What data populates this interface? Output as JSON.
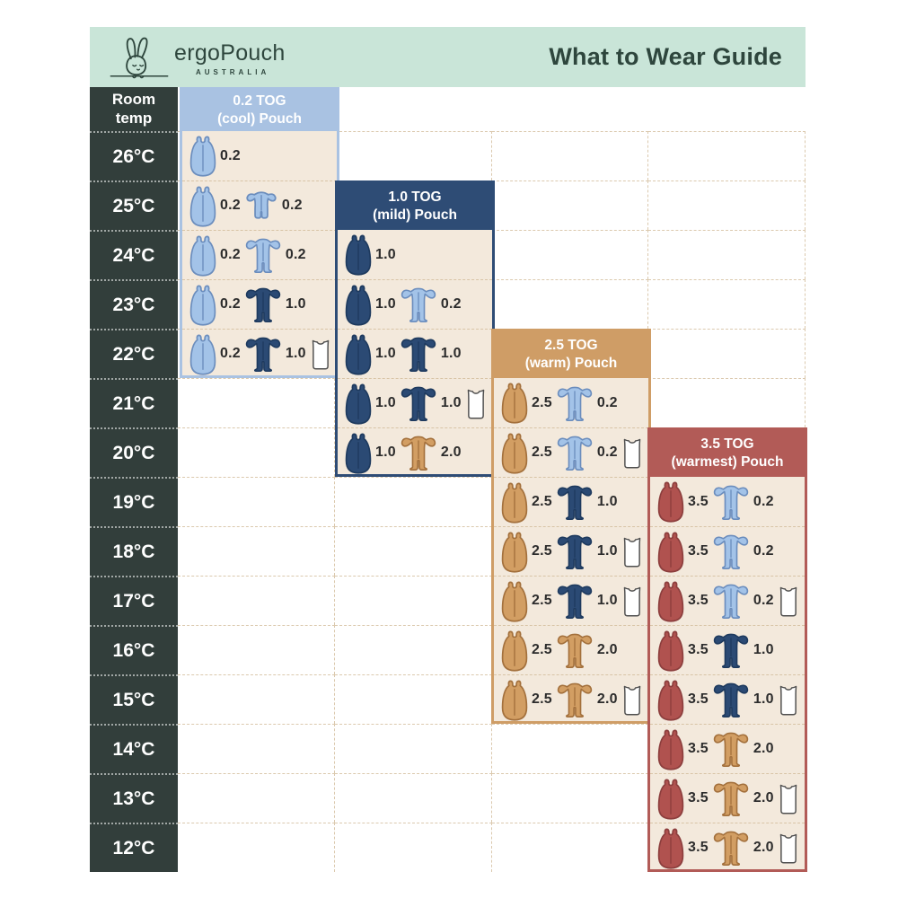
{
  "header": {
    "brand": "ergoPouch",
    "brand_sub": "AUSTRALIA",
    "title": "What to Wear Guide"
  },
  "room_temp": {
    "line1": "Room",
    "line2": "temp"
  },
  "colors": {
    "page_bg": "#ffffff",
    "topbar_bg": "#c9e5d8",
    "topbar_text": "#2e463d",
    "temp_column_bg": "#323e3b",
    "temp_text": "#ffffff",
    "card_body_bg": "#f3e9dc",
    "grid_line": "#dbc9ae",
    "tog_text": "#2c2c2c",
    "garments": {
      "lightblue": {
        "fill": "#a3c3e8",
        "stroke": "#6b8dbd"
      },
      "navy": {
        "fill": "#2b4a74",
        "stroke": "#1e3a5e"
      },
      "tan": {
        "fill": "#d29e63",
        "stroke": "#a3703c"
      },
      "red": {
        "fill": "#b0524f",
        "stroke": "#8c3e3d"
      },
      "white": {
        "fill": "#ffffff",
        "stroke": "#4f4f4f"
      }
    }
  },
  "chart_data": {
    "type": "table",
    "title": "What to Wear Guide",
    "row_axis_label": "Room temp",
    "temperatures": [
      "26°C",
      "25°C",
      "24°C",
      "23°C",
      "22°C",
      "21°C",
      "20°C",
      "19°C",
      "18°C",
      "17°C",
      "16°C",
      "15°C",
      "14°C",
      "13°C",
      "12°C"
    ],
    "columns": [
      {
        "title_line1": "0.2 TOG",
        "title_line2": "(cool) Pouch",
        "theme": "#a9c2e2",
        "header_temp": null,
        "rows": [
          {
            "temp": "26°C",
            "items": [
              {
                "type": "sleep-bag",
                "color": "lightblue",
                "tog": "0.2"
              }
            ]
          },
          {
            "temp": "25°C",
            "items": [
              {
                "type": "sleep-bag",
                "color": "lightblue",
                "tog": "0.2"
              },
              {
                "type": "romper",
                "color": "lightblue",
                "tog": "0.2"
              }
            ]
          },
          {
            "temp": "24°C",
            "items": [
              {
                "type": "sleep-bag",
                "color": "lightblue",
                "tog": "0.2"
              },
              {
                "type": "onesie",
                "color": "lightblue",
                "tog": "0.2"
              }
            ]
          },
          {
            "temp": "23°C",
            "items": [
              {
                "type": "sleep-bag",
                "color": "lightblue",
                "tog": "0.2"
              },
              {
                "type": "onesie",
                "color": "navy",
                "tog": "1.0"
              }
            ]
          },
          {
            "temp": "22°C",
            "items": [
              {
                "type": "sleep-bag",
                "color": "lightblue",
                "tog": "0.2"
              },
              {
                "type": "onesie",
                "color": "navy",
                "tog": "1.0"
              },
              {
                "type": "singlet",
                "color": "white",
                "tog": ""
              }
            ]
          }
        ]
      },
      {
        "title_line1": "1.0 TOG",
        "title_line2": "(mild) Pouch",
        "theme": "#2e4c75",
        "header_temp": "25°C",
        "rows": [
          {
            "temp": "24°C",
            "items": [
              {
                "type": "sleep-bag",
                "color": "navy",
                "tog": "1.0"
              }
            ]
          },
          {
            "temp": "23°C",
            "items": [
              {
                "type": "sleep-bag",
                "color": "navy",
                "tog": "1.0"
              },
              {
                "type": "onesie",
                "color": "lightblue",
                "tog": "0.2"
              }
            ]
          },
          {
            "temp": "22°C",
            "items": [
              {
                "type": "sleep-bag",
                "color": "navy",
                "tog": "1.0"
              },
              {
                "type": "onesie",
                "color": "navy",
                "tog": "1.0"
              }
            ]
          },
          {
            "temp": "21°C",
            "items": [
              {
                "type": "sleep-bag",
                "color": "navy",
                "tog": "1.0"
              },
              {
                "type": "onesie",
                "color": "navy",
                "tog": "1.0"
              },
              {
                "type": "singlet",
                "color": "white",
                "tog": ""
              }
            ]
          },
          {
            "temp": "20°C",
            "items": [
              {
                "type": "sleep-bag",
                "color": "navy",
                "tog": "1.0"
              },
              {
                "type": "onesie",
                "color": "tan",
                "tog": "2.0"
              }
            ]
          }
        ]
      },
      {
        "title_line1": "2.5 TOG",
        "title_line2": "(warm) Pouch",
        "theme": "#cf9d66",
        "header_temp": "22°C",
        "rows": [
          {
            "temp": "21°C",
            "items": [
              {
                "type": "sleep-bag",
                "color": "tan",
                "tog": "2.5"
              },
              {
                "type": "onesie",
                "color": "lightblue",
                "tog": "0.2"
              }
            ]
          },
          {
            "temp": "20°C",
            "items": [
              {
                "type": "sleep-bag",
                "color": "tan",
                "tog": "2.5"
              },
              {
                "type": "onesie",
                "color": "lightblue",
                "tog": "0.2"
              },
              {
                "type": "singlet",
                "color": "white",
                "tog": ""
              }
            ]
          },
          {
            "temp": "19°C",
            "items": [
              {
                "type": "sleep-bag",
                "color": "tan",
                "tog": "2.5"
              },
              {
                "type": "onesie",
                "color": "navy",
                "tog": "1.0"
              }
            ]
          },
          {
            "temp": "18°C",
            "items": [
              {
                "type": "sleep-bag",
                "color": "tan",
                "tog": "2.5"
              },
              {
                "type": "onesie",
                "color": "navy",
                "tog": "1.0"
              },
              {
                "type": "singlet",
                "color": "white",
                "tog": ""
              }
            ]
          },
          {
            "temp": "17°C",
            "items": [
              {
                "type": "sleep-bag",
                "color": "tan",
                "tog": "2.5"
              },
              {
                "type": "onesie",
                "color": "navy",
                "tog": "1.0"
              },
              {
                "type": "singlet",
                "color": "white",
                "tog": ""
              }
            ]
          },
          {
            "temp": "16°C",
            "items": [
              {
                "type": "sleep-bag",
                "color": "tan",
                "tog": "2.5"
              },
              {
                "type": "onesie",
                "color": "tan",
                "tog": "2.0"
              }
            ]
          },
          {
            "temp": "15°C",
            "items": [
              {
                "type": "sleep-bag",
                "color": "tan",
                "tog": "2.5"
              },
              {
                "type": "onesie",
                "color": "tan",
                "tog": "2.0"
              },
              {
                "type": "singlet",
                "color": "white",
                "tog": ""
              }
            ]
          }
        ]
      },
      {
        "title_line1": "3.5 TOG",
        "title_line2": "(warmest) Pouch",
        "theme": "#b25b57",
        "header_temp": "20°C",
        "rows": [
          {
            "temp": "19°C",
            "items": [
              {
                "type": "sleep-bag",
                "color": "red",
                "tog": "3.5"
              },
              {
                "type": "onesie",
                "color": "lightblue",
                "tog": "0.2"
              }
            ]
          },
          {
            "temp": "18°C",
            "items": [
              {
                "type": "sleep-bag",
                "color": "red",
                "tog": "3.5"
              },
              {
                "type": "onesie",
                "color": "lightblue",
                "tog": "0.2"
              }
            ]
          },
          {
            "temp": "17°C",
            "items": [
              {
                "type": "sleep-bag",
                "color": "red",
                "tog": "3.5"
              },
              {
                "type": "onesie",
                "color": "lightblue",
                "tog": "0.2"
              },
              {
                "type": "singlet",
                "color": "white",
                "tog": ""
              }
            ]
          },
          {
            "temp": "16°C",
            "items": [
              {
                "type": "sleep-bag",
                "color": "red",
                "tog": "3.5"
              },
              {
                "type": "onesie",
                "color": "navy",
                "tog": "1.0"
              }
            ]
          },
          {
            "temp": "15°C",
            "items": [
              {
                "type": "sleep-bag",
                "color": "red",
                "tog": "3.5"
              },
              {
                "type": "onesie",
                "color": "navy",
                "tog": "1.0"
              },
              {
                "type": "singlet",
                "color": "white",
                "tog": ""
              }
            ]
          },
          {
            "temp": "14°C",
            "items": [
              {
                "type": "sleep-bag",
                "color": "red",
                "tog": "3.5"
              },
              {
                "type": "onesie",
                "color": "tan",
                "tog": "2.0"
              }
            ]
          },
          {
            "temp": "13°C",
            "items": [
              {
                "type": "sleep-bag",
                "color": "red",
                "tog": "3.5"
              },
              {
                "type": "onesie",
                "color": "tan",
                "tog": "2.0"
              },
              {
                "type": "singlet",
                "color": "white",
                "tog": ""
              }
            ]
          },
          {
            "temp": "12°C",
            "items": [
              {
                "type": "sleep-bag",
                "color": "red",
                "tog": "3.5"
              },
              {
                "type": "onesie",
                "color": "tan",
                "tog": "2.0"
              },
              {
                "type": "singlet",
                "color": "white",
                "tog": ""
              }
            ]
          }
        ]
      }
    ]
  }
}
